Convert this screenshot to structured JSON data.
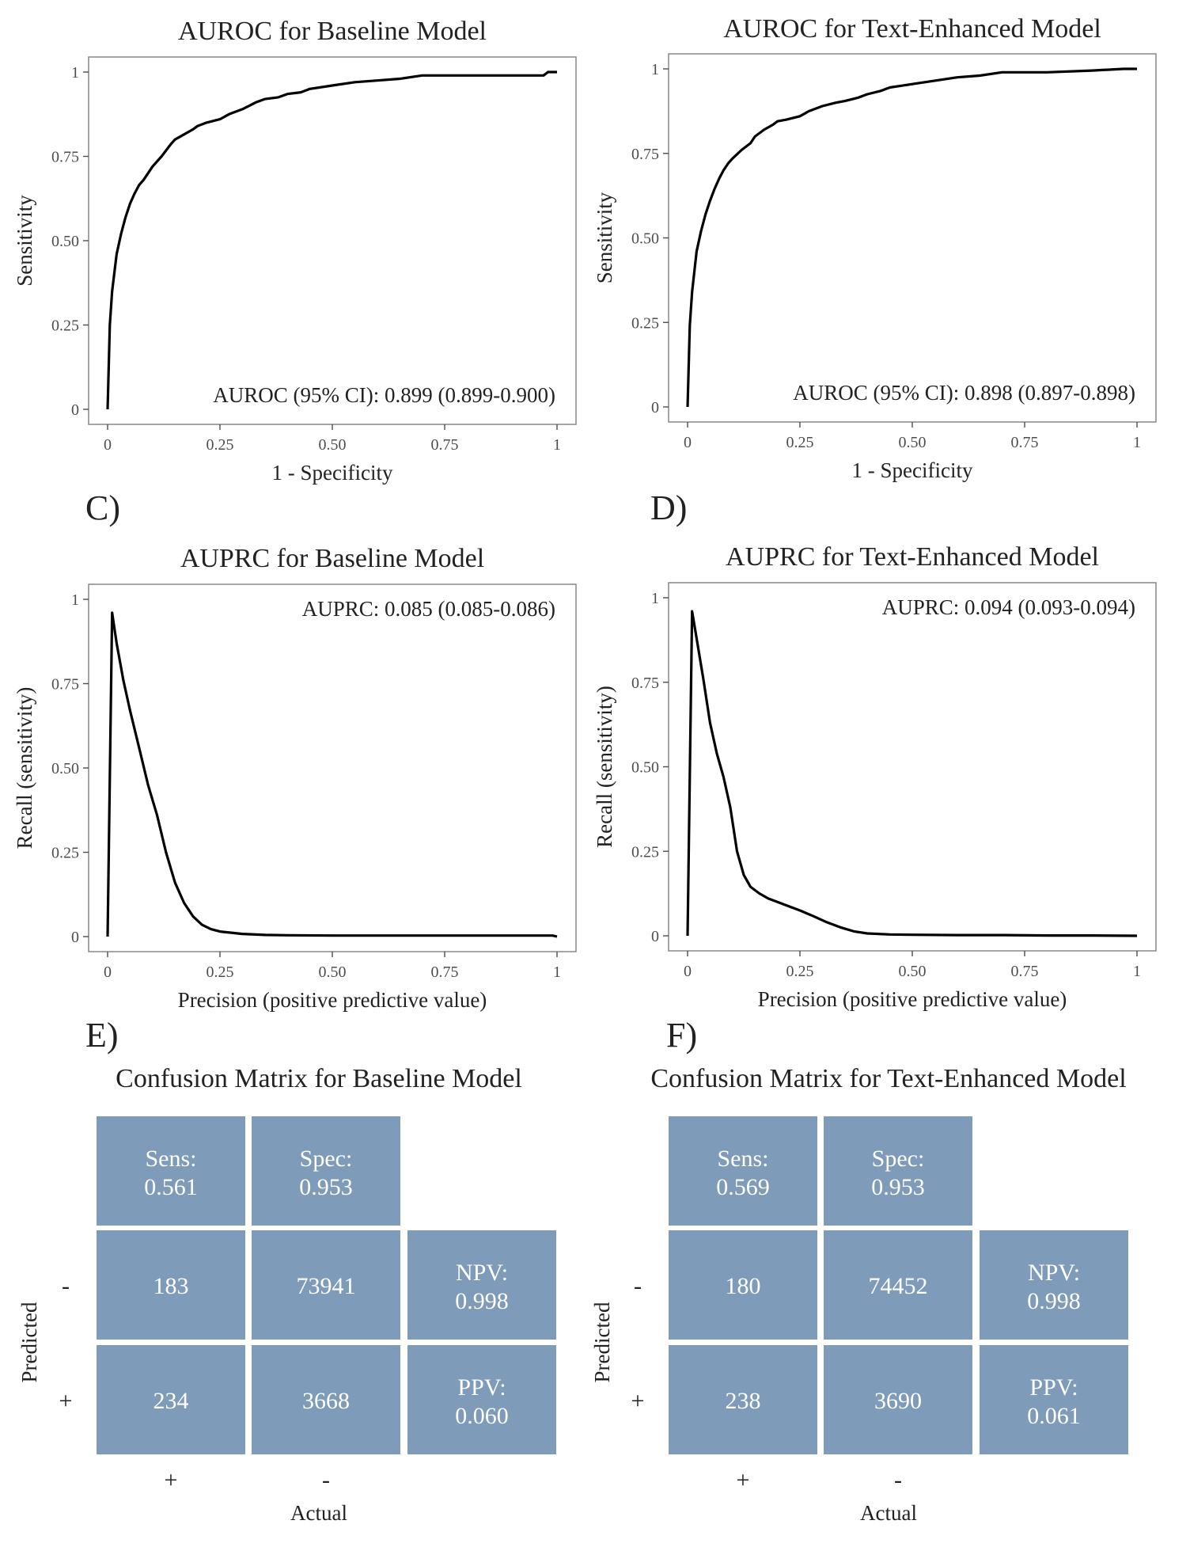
{
  "panel_letters": [
    "",
    "",
    "C)",
    "D)",
    "E)",
    "F)"
  ],
  "colors": {
    "curve": "#000000",
    "cell": "#7f9bba",
    "cell_text": "#ffffff",
    "frame": "#7f7f7f"
  },
  "chart_data": [
    {
      "type": "line",
      "title": "AUROC for Baseline Model",
      "xlabel": "1 - Specificity",
      "ylabel": "Sensitivity",
      "xlim": [
        0,
        1
      ],
      "ylim": [
        0,
        1
      ],
      "xticks": [
        "0",
        "0.25",
        "0.50",
        "0.75",
        "1"
      ],
      "yticks": [
        "0",
        "0.25",
        "0.50",
        "0.75",
        "1"
      ],
      "grid": false,
      "annotation": "AUROC (95% CI): 0.899 (0.899-0.900)",
      "annotation_position": "bottom-right",
      "x": [
        0,
        0.005,
        0.01,
        0.02,
        0.03,
        0.04,
        0.05,
        0.06,
        0.07,
        0.08,
        0.09,
        0.1,
        0.12,
        0.14,
        0.15,
        0.17,
        0.19,
        0.2,
        0.22,
        0.25,
        0.27,
        0.3,
        0.33,
        0.35,
        0.38,
        0.4,
        0.43,
        0.45,
        0.5,
        0.55,
        0.6,
        0.65,
        0.7,
        0.8,
        0.9,
        0.97,
        0.98,
        1.0
      ],
      "y": [
        0,
        0.25,
        0.35,
        0.46,
        0.52,
        0.57,
        0.61,
        0.64,
        0.665,
        0.68,
        0.7,
        0.72,
        0.75,
        0.785,
        0.8,
        0.815,
        0.83,
        0.84,
        0.85,
        0.86,
        0.875,
        0.89,
        0.91,
        0.92,
        0.925,
        0.935,
        0.94,
        0.95,
        0.96,
        0.97,
        0.975,
        0.98,
        0.99,
        0.99,
        0.99,
        0.99,
        1.0,
        1.0
      ]
    },
    {
      "type": "line",
      "title": "AUROC for Text-Enhanced Model",
      "xlabel": "1 - Specificity",
      "ylabel": "Sensitivity",
      "xlim": [
        0,
        1
      ],
      "ylim": [
        0,
        1
      ],
      "xticks": [
        "0",
        "0.25",
        "0.50",
        "0.75",
        "1"
      ],
      "yticks": [
        "0",
        "0.25",
        "0.50",
        "0.75",
        "1"
      ],
      "grid": false,
      "annotation": "AUROC (95% CI): 0.898 (0.897-0.898)",
      "annotation_position": "bottom-right",
      "x": [
        0,
        0.005,
        0.01,
        0.02,
        0.03,
        0.04,
        0.05,
        0.06,
        0.07,
        0.08,
        0.09,
        0.1,
        0.12,
        0.14,
        0.15,
        0.17,
        0.19,
        0.2,
        0.22,
        0.25,
        0.27,
        0.3,
        0.33,
        0.35,
        0.38,
        0.4,
        0.43,
        0.45,
        0.5,
        0.55,
        0.6,
        0.65,
        0.7,
        0.8,
        0.9,
        0.97,
        0.98,
        1.0
      ],
      "y": [
        0,
        0.24,
        0.34,
        0.46,
        0.52,
        0.57,
        0.61,
        0.645,
        0.675,
        0.7,
        0.72,
        0.735,
        0.76,
        0.78,
        0.8,
        0.82,
        0.835,
        0.845,
        0.85,
        0.86,
        0.875,
        0.89,
        0.9,
        0.905,
        0.915,
        0.925,
        0.935,
        0.945,
        0.955,
        0.965,
        0.975,
        0.98,
        0.99,
        0.99,
        0.995,
        1.0,
        1.0,
        1.0
      ]
    },
    {
      "type": "line",
      "title": "AUPRC for Baseline Model",
      "xlabel": "Precision (positive predictive value)",
      "ylabel": "Recall (sensitivity)",
      "xlim": [
        0,
        1
      ],
      "ylim": [
        0,
        1
      ],
      "xticks": [
        "0",
        "0.25",
        "0.50",
        "0.75",
        "1"
      ],
      "yticks": [
        "0",
        "0.25",
        "0.50",
        "0.75",
        "1"
      ],
      "grid": false,
      "annotation": "AUPRC: 0.085 (0.085-0.086)",
      "annotation_position": "top-right",
      "x": [
        0,
        0.01,
        0.02,
        0.035,
        0.05,
        0.07,
        0.09,
        0.11,
        0.13,
        0.15,
        0.17,
        0.19,
        0.21,
        0.23,
        0.25,
        0.3,
        0.35,
        0.4,
        0.5,
        0.6,
        0.7,
        0.8,
        0.9,
        0.99,
        1.0
      ],
      "y": [
        0,
        0.96,
        0.87,
        0.76,
        0.67,
        0.56,
        0.45,
        0.36,
        0.25,
        0.16,
        0.1,
        0.06,
        0.035,
        0.022,
        0.015,
        0.008,
        0.005,
        0.004,
        0.003,
        0.003,
        0.003,
        0.003,
        0.003,
        0.003,
        0.0
      ]
    },
    {
      "type": "line",
      "title": "AUPRC for Text-Enhanced Model",
      "xlabel": "Precision (positive predictive value)",
      "ylabel": "Recall (sensitivity)",
      "xlim": [
        0,
        1
      ],
      "ylim": [
        0,
        1
      ],
      "xticks": [
        "0",
        "0.25",
        "0.50",
        "0.75",
        "1"
      ],
      "yticks": [
        "0",
        "0.25",
        "0.50",
        "0.75",
        "1"
      ],
      "grid": false,
      "annotation": "AUPRC: 0.094 (0.093-0.094)",
      "annotation_position": "top-right",
      "x": [
        0,
        0.01,
        0.02,
        0.035,
        0.05,
        0.065,
        0.08,
        0.095,
        0.11,
        0.125,
        0.14,
        0.16,
        0.18,
        0.2,
        0.22,
        0.25,
        0.28,
        0.31,
        0.34,
        0.37,
        0.4,
        0.45,
        0.5,
        0.6,
        0.7,
        0.8,
        0.9,
        1.0
      ],
      "y": [
        0,
        0.96,
        0.88,
        0.76,
        0.63,
        0.54,
        0.47,
        0.38,
        0.25,
        0.18,
        0.145,
        0.125,
        0.11,
        0.1,
        0.09,
        0.075,
        0.058,
        0.04,
        0.025,
        0.013,
        0.007,
        0.004,
        0.003,
        0.002,
        0.002,
        0.001,
        0.001,
        0.0
      ]
    },
    {
      "type": "table",
      "title": "Confusion Matrix for Baseline Model",
      "xlabel": "Actual",
      "ylabel": "Predicted",
      "column_ticks": [
        "+",
        "-"
      ],
      "row_ticks": [
        "-",
        "+"
      ],
      "top_row": [
        [
          "Sens:",
          "0.561"
        ],
        [
          "Spec:",
          "0.953"
        ]
      ],
      "rows": [
        {
          "cells": [
            "183",
            "73941"
          ],
          "metric": [
            "NPV:",
            "0.998"
          ]
        },
        {
          "cells": [
            "234",
            "3668"
          ],
          "metric": [
            "PPV:",
            "0.060"
          ]
        }
      ]
    },
    {
      "type": "table",
      "title": "Confusion Matrix for Text-Enhanced Model",
      "xlabel": "Actual",
      "ylabel": "Predicted",
      "column_ticks": [
        "+",
        "-"
      ],
      "row_ticks": [
        "-",
        "+"
      ],
      "top_row": [
        [
          "Sens:",
          "0.569"
        ],
        [
          "Spec:",
          "0.953"
        ]
      ],
      "rows": [
        {
          "cells": [
            "180",
            "74452"
          ],
          "metric": [
            "NPV:",
            "0.998"
          ]
        },
        {
          "cells": [
            "238",
            "3690"
          ],
          "metric": [
            "PPV:",
            "0.061"
          ]
        }
      ]
    }
  ]
}
